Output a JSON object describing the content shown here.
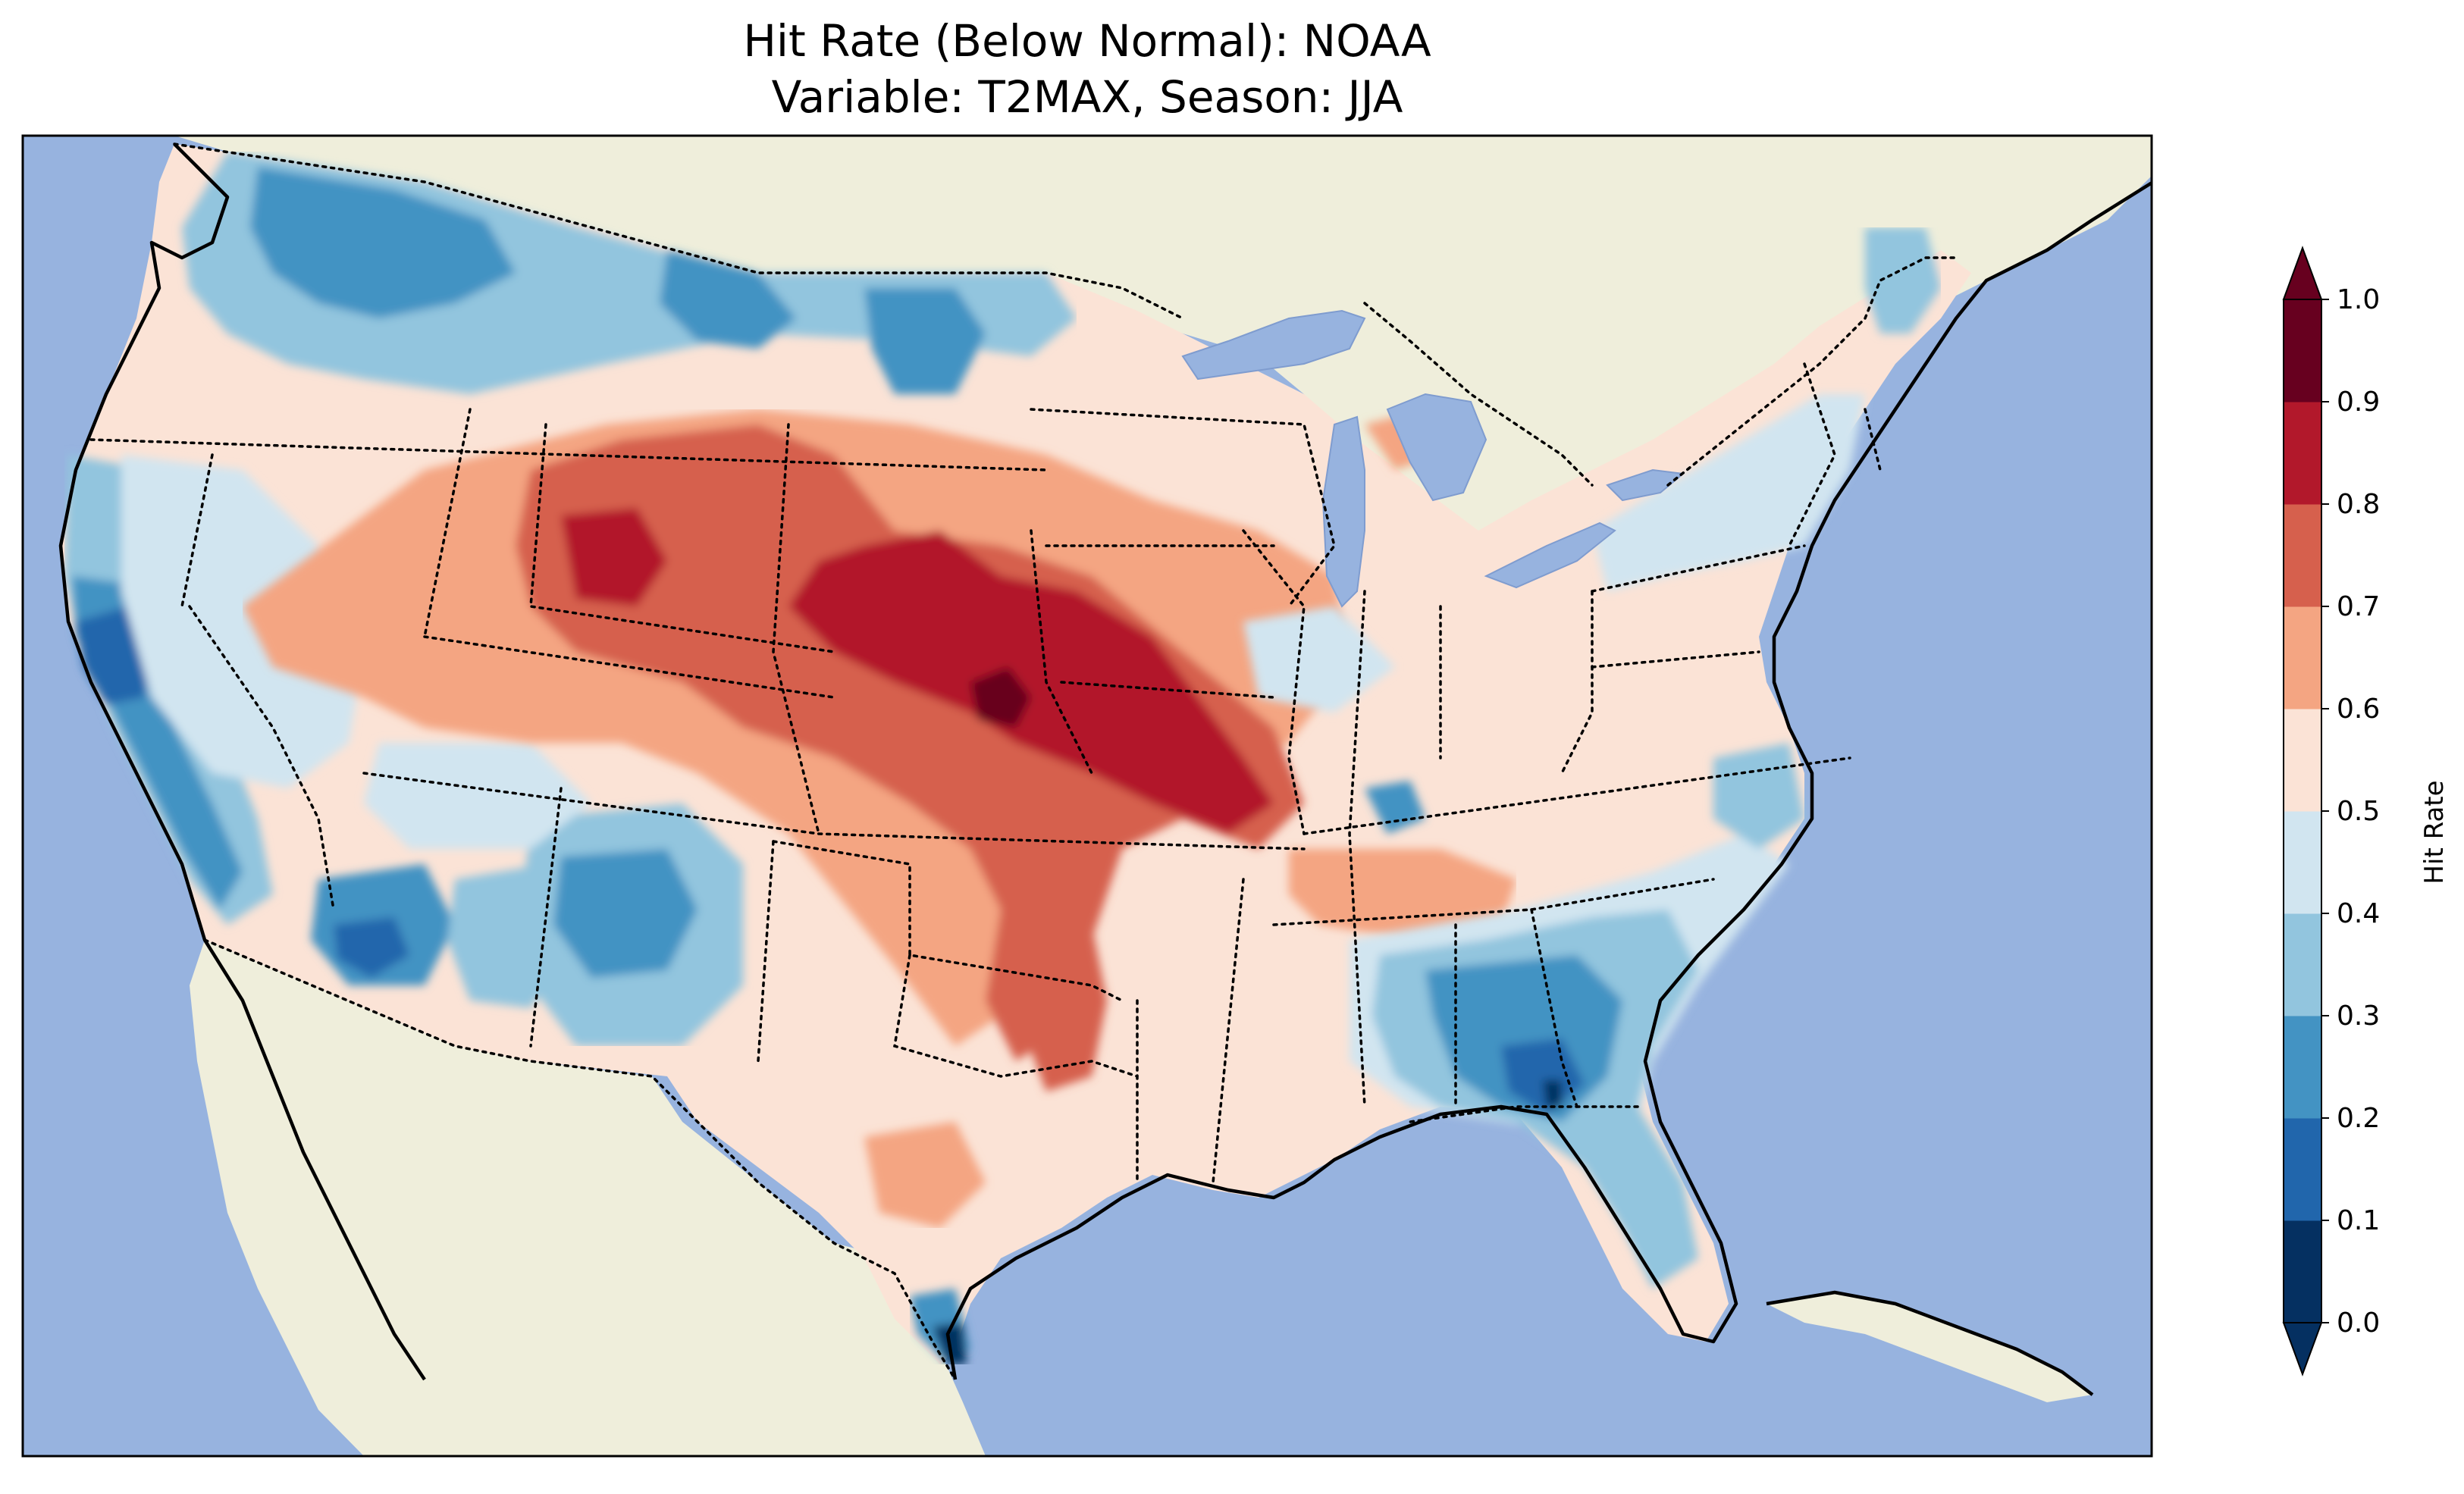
{
  "title": {
    "line1": "Hit Rate (Below Normal): NOAA",
    "line2": "Variable: T2MAX, Season: JJA"
  },
  "colors": {
    "ocean": "#97b3df",
    "land": "#efeedb",
    "lakes": "#97b3df",
    "bins": [
      "#053061",
      "#2166ac",
      "#4393c3",
      "#92c5de",
      "#d1e5f0",
      "#fbe3d6",
      "#f4a582",
      "#d6604d",
      "#b2182b",
      "#67001f"
    ]
  },
  "colorbar": {
    "label": "Hit Rate",
    "ticks": [
      "0.0",
      "0.1",
      "0.2",
      "0.3",
      "0.4",
      "0.5",
      "0.6",
      "0.7",
      "0.8",
      "0.9",
      "1.0"
    ],
    "extend": "both"
  },
  "map": {
    "region": "Contiguous United States",
    "field": "hit_rate_below_normal",
    "units": "fraction",
    "range": [
      0.0,
      1.0
    ],
    "regions": [
      {
        "name": "Pacific Northwest",
        "value": 0.35
      },
      {
        "name": "Northern Rockies",
        "value": 0.32
      },
      {
        "name": "California coast",
        "value": 0.22
      },
      {
        "name": "Southern California",
        "value": 0.3
      },
      {
        "name": "Great Basin",
        "value": 0.48
      },
      {
        "name": "Colorado-Wyoming",
        "value": 0.72
      },
      {
        "name": "Nebraska-Kansas",
        "value": 0.77
      },
      {
        "name": "Kansas center",
        "value": 0.85
      },
      {
        "name": "Missouri",
        "value": 0.72
      },
      {
        "name": "Arizona-New Mexico",
        "value": 0.3
      },
      {
        "name": "Texas",
        "value": 0.52
      },
      {
        "name": "Oklahoma-Arkansas",
        "value": 0.68
      },
      {
        "name": "Tennessee Valley",
        "value": 0.62
      },
      {
        "name": "Southeast",
        "value": 0.22
      },
      {
        "name": "South Georgia",
        "value": 0.12
      },
      {
        "name": "Florida",
        "value": 0.25
      },
      {
        "name": "South Texas tip",
        "value": 0.05
      },
      {
        "name": "Northeast",
        "value": 0.45
      },
      {
        "name": "New England",
        "value": 0.32
      },
      {
        "name": "Upper Midwest",
        "value": 0.52
      },
      {
        "name": "Ohio Valley",
        "value": 0.48
      }
    ]
  }
}
